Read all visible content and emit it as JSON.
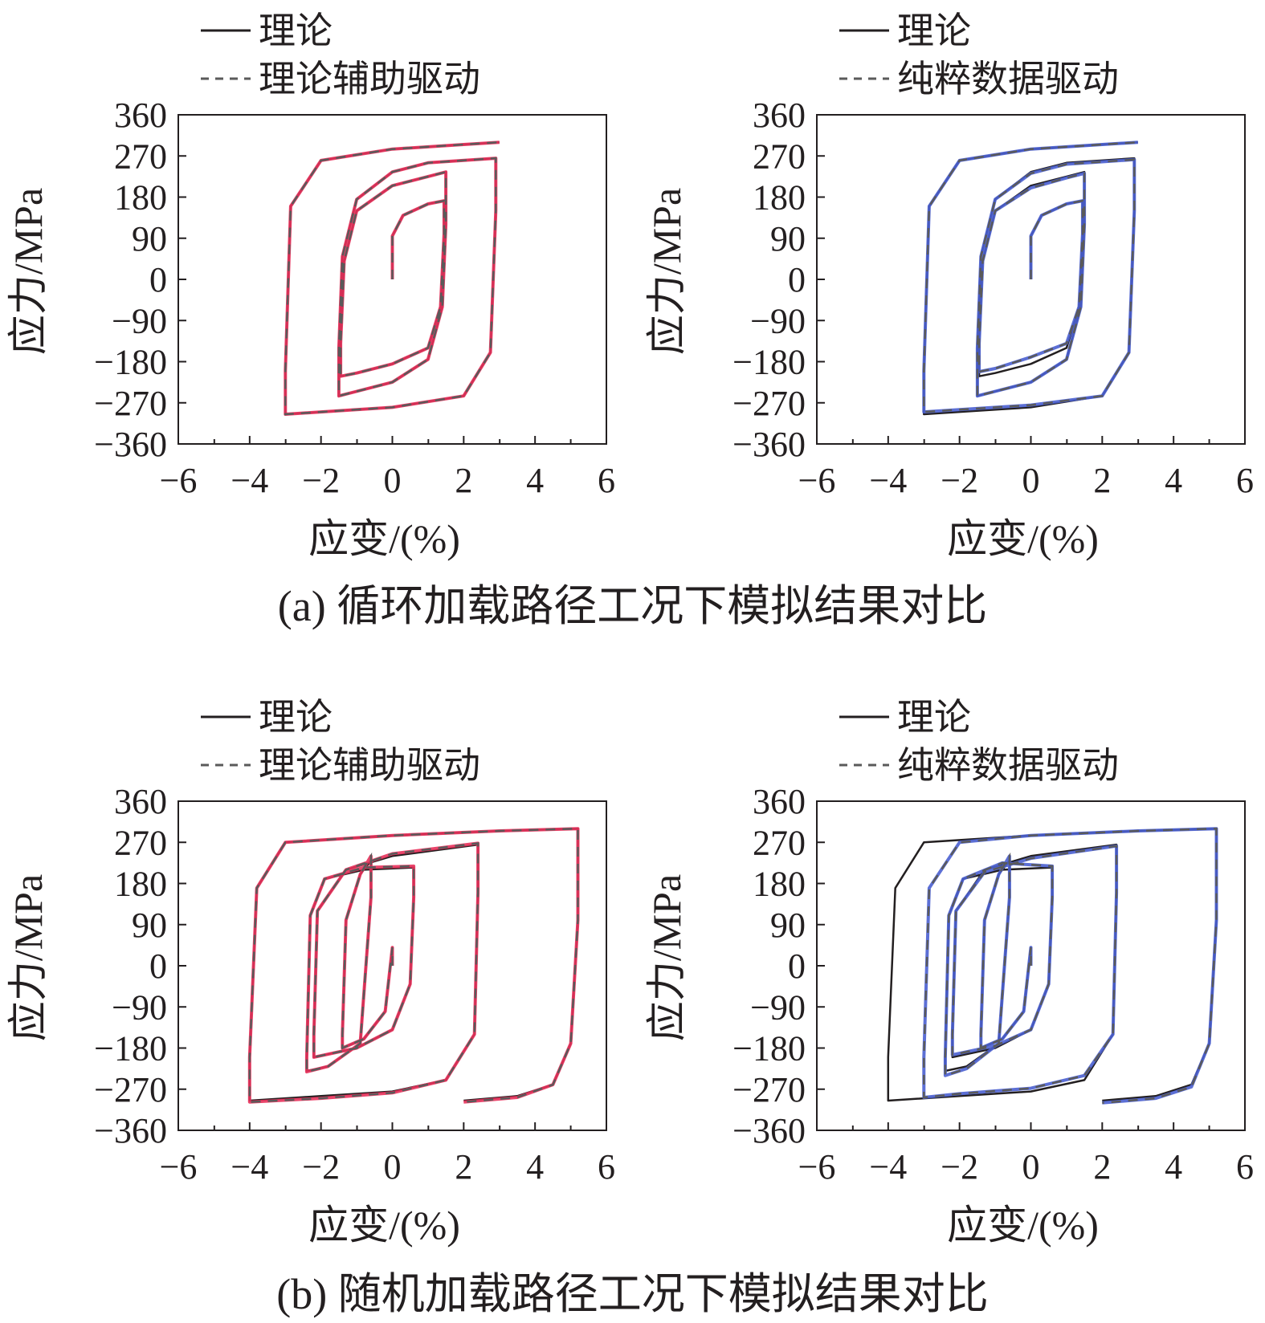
{
  "captions": {
    "a": "(a) 循环加载路径工况下模拟结果对比",
    "b": "(b) 随机加载路径工况下模拟结果对比"
  },
  "colors": {
    "theory": "#231f20",
    "dashed_gray": "#5a5a5a",
    "theory_assisted": "#e8315b",
    "pure_data": "#4a5fd0"
  },
  "chart_data": [
    {
      "type": "line",
      "panel": "a-left",
      "xlabel": "应变/(%)",
      "ylabel": "应力/MPa",
      "xlim": [
        -6,
        6
      ],
      "ylim": [
        -360,
        360
      ],
      "xticks": [
        -6,
        -4,
        -2,
        0,
        2,
        4,
        6
      ],
      "yticks": [
        360,
        270,
        180,
        90,
        0,
        -90,
        -180,
        -270,
        -360
      ],
      "xtick_labels": [
        "−6",
        "−4",
        "−2",
        "0",
        "2",
        "4",
        "6"
      ],
      "ytick_labels": [
        "360",
        "270",
        "180",
        "90",
        "0",
        "−90",
        "−180",
        "−270",
        "−360"
      ],
      "legend": {
        "position": "top",
        "entries": [
          "理论",
          "理论辅助驱动"
        ]
      },
      "series": [
        {
          "name": "理论",
          "style": "solid",
          "x": [
            0,
            0,
            0.3,
            1.0,
            1.45,
            1.45,
            1.35,
            1.0,
            0,
            -1.0,
            -1.45,
            -1.45,
            -1.35,
            -1.0,
            0,
            1.0,
            1.5,
            1.5,
            1.4,
            1.0,
            0,
            -1.0,
            -1.5,
            -1.5,
            -1.4,
            -1.0,
            0,
            1.0,
            2.9,
            2.9,
            2.75,
            2.0,
            0,
            -2.0,
            -3.0,
            -3.0,
            -2.85,
            -2.0,
            0,
            2.0,
            3.0
          ],
          "y": [
            0,
            95,
            140,
            165,
            172,
            100,
            -60,
            -150,
            -185,
            -205,
            -212,
            -140,
            40,
            150,
            205,
            225,
            235,
            120,
            -60,
            -175,
            -225,
            -245,
            -255,
            -150,
            50,
            175,
            235,
            255,
            265,
            150,
            -160,
            -255,
            -280,
            -290,
            -295,
            -200,
            160,
            260,
            285,
            295,
            300
          ]
        },
        {
          "name": "理论辅助驱动",
          "style": "dashed",
          "x": [
            0,
            0,
            0.3,
            1.0,
            1.45,
            1.45,
            1.35,
            1.0,
            0,
            -1.0,
            -1.45,
            -1.45,
            -1.35,
            -1.0,
            0,
            1.0,
            1.5,
            1.5,
            1.4,
            1.0,
            0,
            -1.0,
            -1.5,
            -1.5,
            -1.4,
            -1.0,
            0,
            1.0,
            2.9,
            2.9,
            2.75,
            2.0,
            0,
            -2.0,
            -3.0,
            -3.0,
            -2.85,
            -2.0,
            0,
            2.0,
            3.0
          ],
          "y": [
            0,
            95,
            140,
            165,
            172,
            100,
            -60,
            -150,
            -185,
            -205,
            -212,
            -140,
            40,
            150,
            205,
            225,
            235,
            120,
            -60,
            -175,
            -225,
            -245,
            -255,
            -150,
            50,
            175,
            235,
            255,
            265,
            150,
            -160,
            -255,
            -280,
            -290,
            -295,
            -200,
            160,
            260,
            285,
            295,
            300
          ]
        }
      ]
    },
    {
      "type": "line",
      "panel": "a-right",
      "xlabel": "应变/(%)",
      "ylabel": "应力/MPa",
      "xlim": [
        -6,
        6
      ],
      "ylim": [
        -360,
        360
      ],
      "xticks": [
        -6,
        -4,
        -2,
        0,
        2,
        4,
        6
      ],
      "yticks": [
        360,
        270,
        180,
        90,
        0,
        -90,
        -180,
        -270,
        -360
      ],
      "xtick_labels": [
        "−6",
        "−4",
        "−2",
        "0",
        "2",
        "4",
        "6"
      ],
      "ytick_labels": [
        "360",
        "270",
        "180",
        "90",
        "0",
        "−90",
        "−180",
        "−270",
        "−360"
      ],
      "legend": {
        "position": "top",
        "entries": [
          "理论",
          "纯粹数据驱动"
        ]
      },
      "series": [
        {
          "name": "理论",
          "style": "solid",
          "x": [
            0,
            0,
            0.3,
            1.0,
            1.45,
            1.45,
            1.35,
            1.0,
            0,
            -1.0,
            -1.45,
            -1.45,
            -1.35,
            -1.0,
            0,
            1.0,
            1.5,
            1.5,
            1.4,
            1.0,
            0,
            -1.0,
            -1.5,
            -1.5,
            -1.4,
            -1.0,
            0,
            1.0,
            2.9,
            2.9,
            2.75,
            2.0,
            0,
            -2.0,
            -3.0,
            -3.0,
            -2.85,
            -2.0,
            0,
            2.0,
            3.0
          ],
          "y": [
            0,
            95,
            140,
            165,
            172,
            100,
            -60,
            -150,
            -185,
            -205,
            -212,
            -140,
            40,
            150,
            205,
            225,
            235,
            120,
            -60,
            -175,
            -225,
            -245,
            -255,
            -150,
            50,
            175,
            235,
            255,
            265,
            150,
            -160,
            -255,
            -280,
            -290,
            -295,
            -200,
            160,
            260,
            285,
            295,
            300
          ]
        },
        {
          "name": "纯粹数据驱动",
          "style": "dashed",
          "x": [
            0,
            0,
            0.3,
            1.0,
            1.45,
            1.45,
            1.35,
            1.0,
            0,
            -1.0,
            -1.45,
            -1.45,
            -1.35,
            -1.0,
            0,
            1.0,
            1.5,
            1.5,
            1.4,
            1.0,
            0,
            -1.0,
            -1.5,
            -1.5,
            -1.4,
            -1.0,
            0,
            1.0,
            2.9,
            2.9,
            2.75,
            2.0,
            0,
            -2.0,
            -3.0,
            -3.0,
            -2.85,
            -2.0,
            0,
            2.0,
            3.0
          ],
          "y": [
            0,
            95,
            140,
            165,
            172,
            100,
            -60,
            -140,
            -170,
            -195,
            -202,
            -140,
            40,
            150,
            200,
            222,
            232,
            120,
            -60,
            -175,
            -225,
            -245,
            -255,
            -150,
            50,
            175,
            232,
            252,
            262,
            150,
            -160,
            -255,
            -275,
            -285,
            -290,
            -200,
            160,
            260,
            285,
            295,
            300
          ]
        }
      ]
    },
    {
      "type": "line",
      "panel": "b-left",
      "xlabel": "应变/(%)",
      "ylabel": "应力/MPa",
      "xlim": [
        -6,
        6
      ],
      "ylim": [
        -360,
        360
      ],
      "xticks": [
        -6,
        -4,
        -2,
        0,
        2,
        4,
        6
      ],
      "yticks": [
        360,
        270,
        180,
        90,
        0,
        -90,
        -180,
        -270,
        -360
      ],
      "xtick_labels": [
        "−6",
        "−4",
        "−2",
        "0",
        "2",
        "4",
        "6"
      ],
      "ytick_labels": [
        "360",
        "270",
        "180",
        "90",
        "0",
        "−90",
        "−180",
        "−270",
        "−360"
      ],
      "legend": {
        "position": "top",
        "entries": [
          "理论",
          "理论辅助驱动"
        ]
      },
      "series": [
        {
          "name": "理论",
          "style": "solid",
          "x": [
            0,
            0,
            -0.2,
            -0.8,
            -1.4,
            -1.4,
            -1.3,
            -0.9,
            -0.6,
            -0.6,
            -0.9,
            -1.8,
            -2.4,
            -2.4,
            -2.3,
            -1.9,
            -0.8,
            0.6,
            0.6,
            0.5,
            0,
            -1.0,
            -2.2,
            -2.2,
            -2.1,
            -1.3,
            0,
            2.4,
            2.4,
            2.3,
            1.5,
            0,
            -2.0,
            -4.0,
            -4.0,
            -3.8,
            -3.0,
            0,
            3.0,
            5.2,
            5.2,
            5.0,
            4.5,
            3.5,
            2.0
          ],
          "y": [
            0,
            40,
            -100,
            -160,
            -180,
            -150,
            100,
            200,
            230,
            150,
            -170,
            -220,
            -230,
            -200,
            110,
            190,
            210,
            215,
            150,
            -40,
            -140,
            -180,
            -200,
            -150,
            120,
            210,
            240,
            265,
            160,
            -150,
            -250,
            -275,
            -285,
            -295,
            -200,
            170,
            270,
            285,
            295,
            300,
            100,
            -170,
            -260,
            -285,
            -295
          ]
        },
        {
          "name": "理论辅助驱动",
          "style": "dashed",
          "x": [
            0,
            0,
            -0.2,
            -0.8,
            -1.4,
            -1.4,
            -1.3,
            -0.9,
            -0.6,
            -0.6,
            -0.9,
            -1.8,
            -2.4,
            -2.4,
            -2.3,
            -1.9,
            -0.8,
            0.6,
            0.6,
            0.5,
            0,
            -1.0,
            -2.2,
            -2.2,
            -2.1,
            -1.3,
            0,
            2.4,
            2.4,
            2.3,
            1.5,
            0,
            -2.0,
            -4.0,
            -4.0,
            -3.8,
            -3.0,
            0,
            3.0,
            5.2,
            5.2,
            5.0,
            4.5,
            3.5,
            2.0
          ],
          "y": [
            0,
            40,
            -100,
            -160,
            -180,
            -150,
            100,
            200,
            240,
            150,
            -170,
            -220,
            -232,
            -200,
            110,
            190,
            215,
            218,
            150,
            -40,
            -140,
            -180,
            -200,
            -150,
            120,
            210,
            245,
            268,
            160,
            -150,
            -250,
            -278,
            -290,
            -298,
            -200,
            170,
            270,
            285,
            295,
            300,
            100,
            -170,
            -260,
            -288,
            -298
          ]
        }
      ]
    },
    {
      "type": "line",
      "panel": "b-right",
      "xlabel": "应变/(%)",
      "ylabel": "应力/MPa",
      "xlim": [
        -6,
        6
      ],
      "ylim": [
        -360,
        360
      ],
      "xticks": [
        -6,
        -4,
        -2,
        0,
        2,
        4,
        6
      ],
      "yticks": [
        360,
        270,
        180,
        90,
        0,
        -90,
        -180,
        -270,
        -360
      ],
      "xtick_labels": [
        "−6",
        "−4",
        "−2",
        "0",
        "2",
        "4",
        "6"
      ],
      "ytick_labels": [
        "360",
        "270",
        "180",
        "90",
        "0",
        "−90",
        "−180",
        "−270",
        "−360"
      ],
      "legend": {
        "position": "top",
        "entries": [
          "理论",
          "纯粹数据驱动"
        ]
      },
      "series": [
        {
          "name": "理论",
          "style": "solid",
          "x": [
            0,
            0,
            -0.2,
            -0.8,
            -1.4,
            -1.4,
            -1.3,
            -0.9,
            -0.6,
            -0.6,
            -0.9,
            -1.8,
            -2.4,
            -2.4,
            -2.3,
            -1.9,
            -0.8,
            0.6,
            0.6,
            0.5,
            0,
            -1.0,
            -2.2,
            -2.2,
            -2.1,
            -1.3,
            0,
            2.4,
            2.4,
            2.3,
            1.5,
            0,
            -2.0,
            -4.0,
            -4.0,
            -3.8,
            -3.0,
            0,
            3.0,
            5.2,
            5.2,
            5.0,
            4.5,
            3.5,
            2.0
          ],
          "y": [
            0,
            40,
            -100,
            -160,
            -180,
            -150,
            100,
            200,
            230,
            150,
            -170,
            -220,
            -230,
            -200,
            110,
            190,
            210,
            215,
            150,
            -40,
            -140,
            -180,
            -200,
            -150,
            120,
            210,
            240,
            265,
            160,
            -150,
            -250,
            -275,
            -285,
            -295,
            -200,
            170,
            270,
            285,
            295,
            300,
            100,
            -170,
            -260,
            -285,
            -295
          ]
        },
        {
          "name": "纯粹数据驱动",
          "style": "dashed",
          "x": [
            0,
            0,
            -0.2,
            -0.8,
            -1.4,
            -1.4,
            -1.3,
            -0.9,
            -0.6,
            -0.6,
            -0.9,
            -1.8,
            -2.4,
            -2.4,
            -2.3,
            -1.9,
            -0.8,
            0.6,
            0.6,
            0.5,
            0,
            -1.0,
            -2.2,
            -2.2,
            -2.1,
            -1.3,
            0,
            2.4,
            2.4,
            2.3,
            1.5,
            0,
            -2.0,
            -3.0,
            -3.0,
            -2.85,
            -2.0,
            0,
            3.0,
            5.2,
            5.2,
            5.0,
            4.5,
            3.5,
            2.0
          ],
          "y": [
            0,
            40,
            -100,
            -160,
            -180,
            -150,
            100,
            200,
            240,
            150,
            -170,
            -225,
            -240,
            -200,
            110,
            190,
            225,
            218,
            150,
            -40,
            -140,
            -175,
            -195,
            -150,
            120,
            205,
            235,
            262,
            160,
            -150,
            -240,
            -268,
            -280,
            -288,
            -200,
            170,
            270,
            285,
            295,
            300,
            100,
            -170,
            -265,
            -290,
            -300
          ]
        }
      ]
    }
  ]
}
